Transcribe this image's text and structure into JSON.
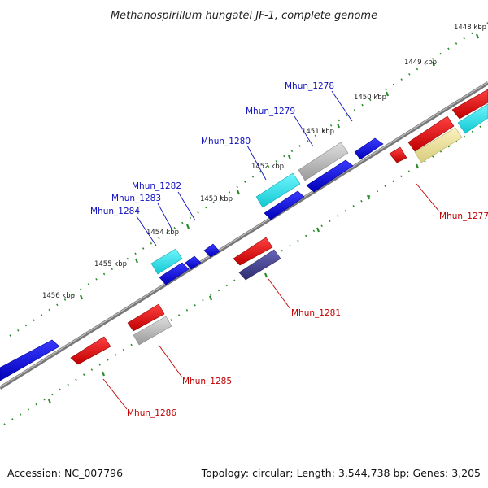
{
  "title": "Methanospirillum hungatei JF-1, complete genome",
  "footer": {
    "accession": "Accession: NC_007796",
    "summary": "Topology: circular; Length: 3,544,738 bp; Genes: 3,205"
  },
  "ticks": [
    "1448 kbp",
    "1449 kbp",
    "1450 kbp",
    "1451 kbp",
    "1452 kbp",
    "1453 kbp",
    "1454 kbp",
    "1455 kbp",
    "1456 kbp"
  ],
  "forward_labels": [
    "Mhun_1278",
    "Mhun_1279",
    "Mhun_1280",
    "Mhun_1282",
    "Mhun_1283",
    "Mhun_1284"
  ],
  "reverse_labels": [
    "Mhun_1277",
    "Mhun_1281",
    "Mhun_1285",
    "Mhun_1286"
  ],
  "colors": {
    "backbone": "#777777",
    "ticks": "#2a8a2a",
    "forward_label": "#1010c0",
    "reverse_label": "#c00000",
    "gene_blue": "#1515dd",
    "gene_cyan": "#22e0e8",
    "gene_gray": "#b8b8b8",
    "gene_red": "#ee1111",
    "gene_yellow": "#eee29a",
    "gene_navy": "#4a4898"
  }
}
